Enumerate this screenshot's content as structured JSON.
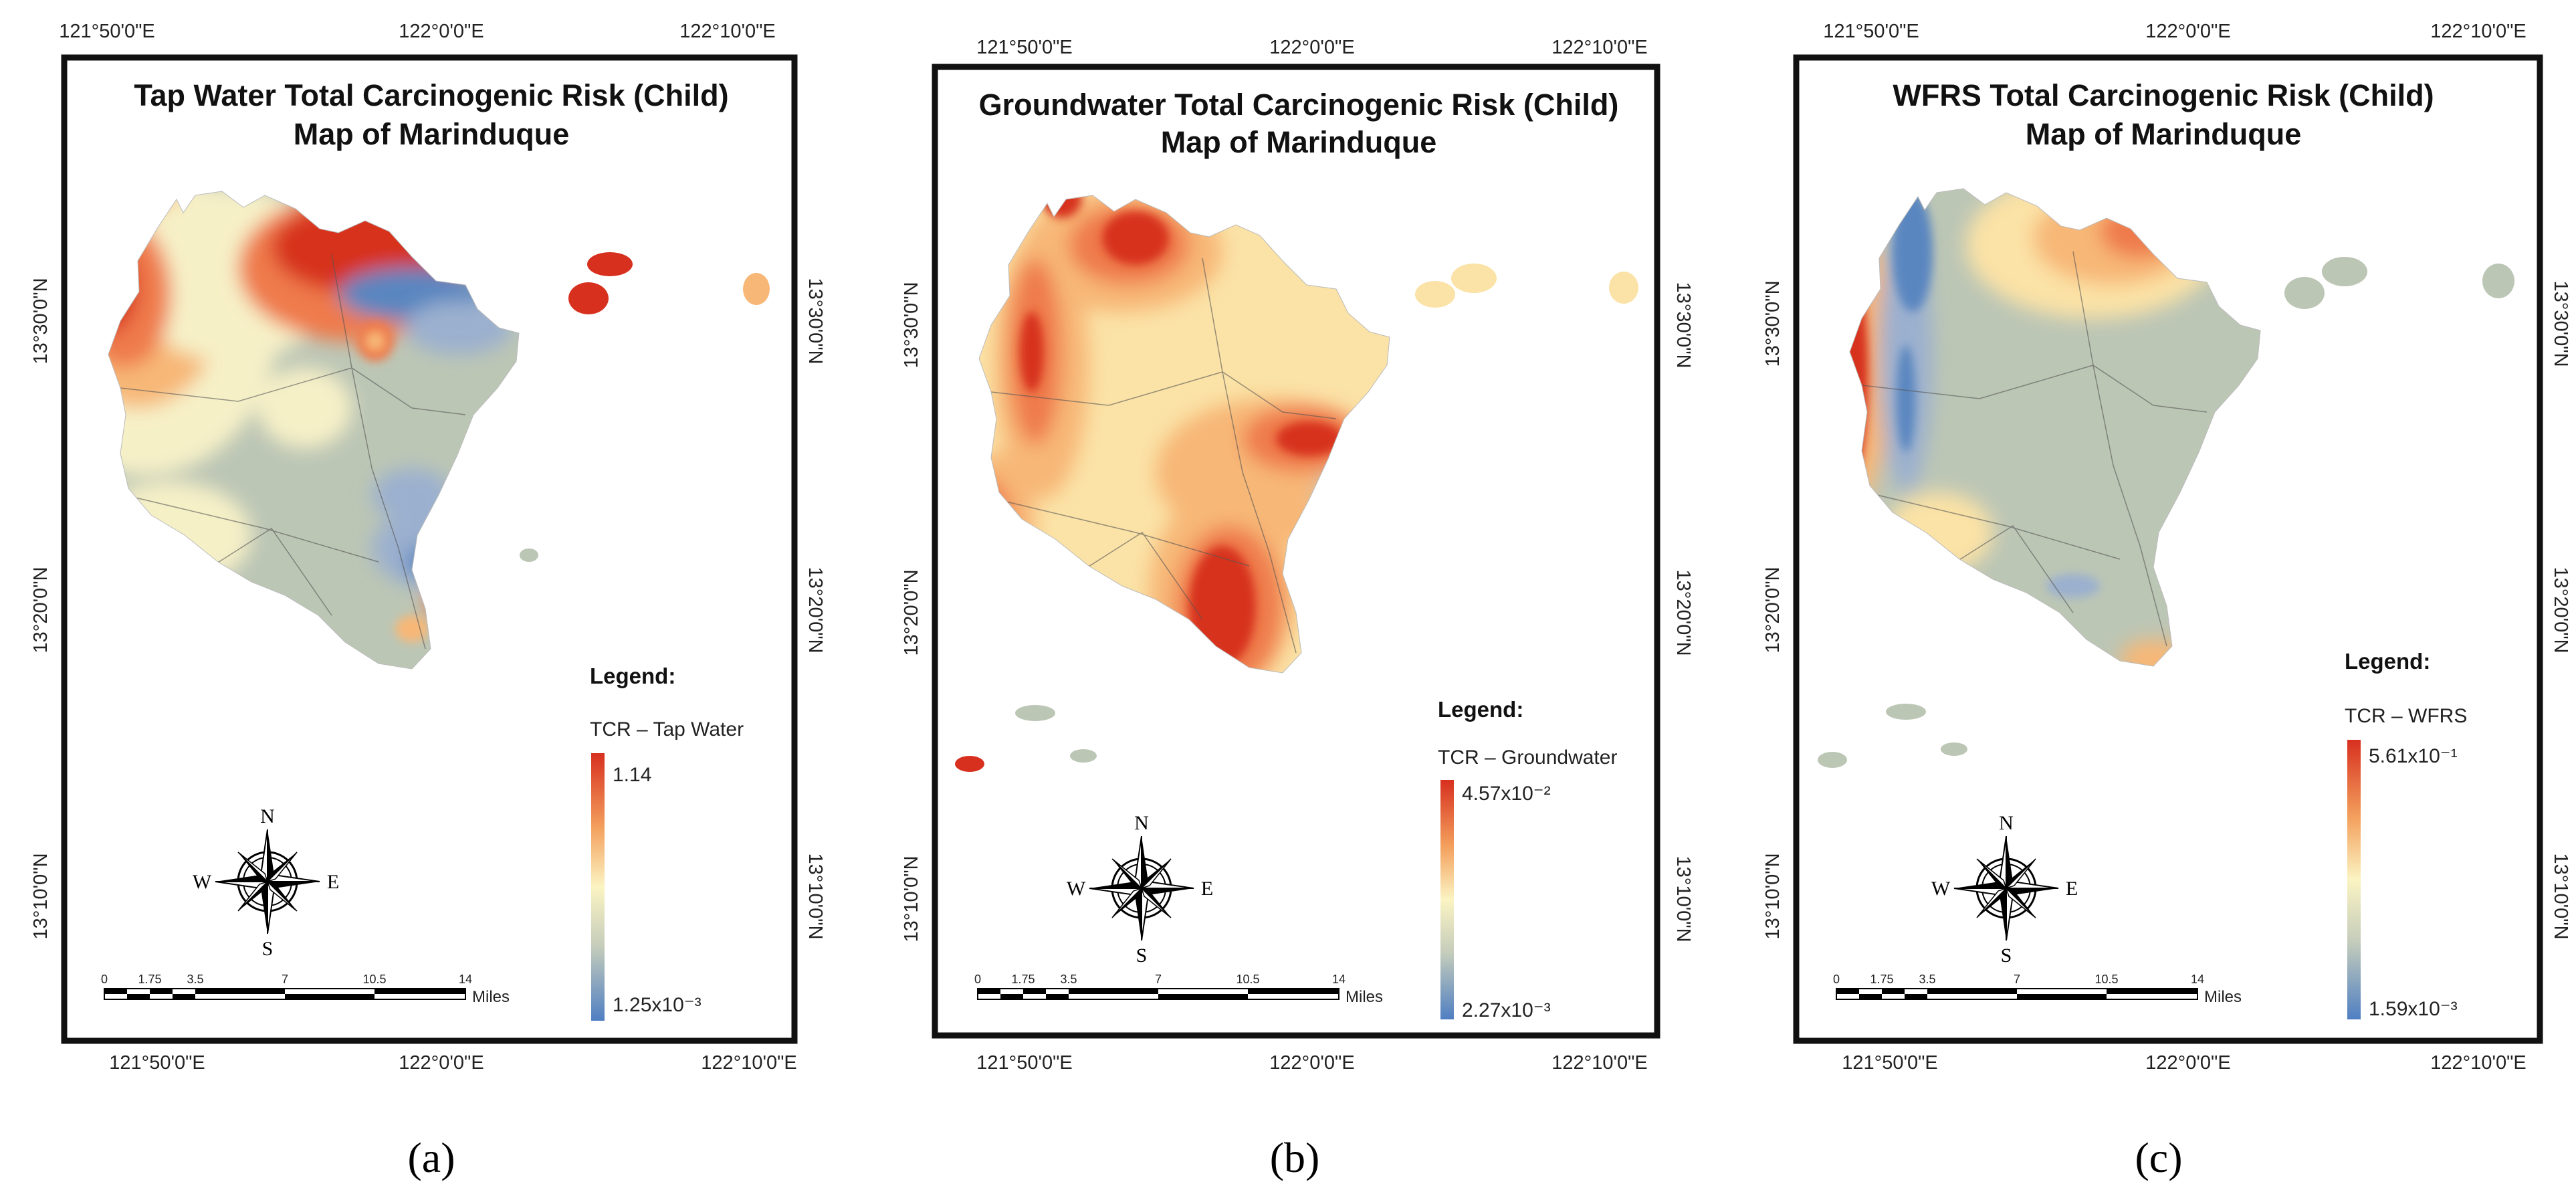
{
  "colors": {
    "high": "#d7301f",
    "orange": "#ef7a4b",
    "light_orange": "#f7b777",
    "yellow": "#fbe2a6",
    "pale_yellow": "#f6f0c7",
    "grey_green": "#bcc6b5",
    "blue": "#5a86c0",
    "light_blue": "#9bb0cf",
    "frame": "#111111"
  },
  "panels": [
    {
      "id": "a",
      "letter": "(a)",
      "title_line1": "Tap Water Total Carcinogenic Risk (Child)",
      "title_line2": "Map of Marinduque",
      "legend_title": "Legend:",
      "legend_subtitle": "TCR – Tap Water",
      "legend_max": "1.14",
      "legend_min": "1.25x10⁻³",
      "top_lon": [
        "121°50'0\"E",
        "122°0'0\"E",
        "122°10'0\"E"
      ],
      "bottom_lon": [
        "121°50'0\"E",
        "122°0'0\"E",
        "122°10'0\"E"
      ],
      "left_lat": [
        "13°30'0\"N",
        "13°20'0\"N",
        "13°10'0\"N"
      ],
      "right_lat": [
        "13°30'0\"N",
        "13°20'0\"N",
        "13°10'0\"N"
      ]
    },
    {
      "id": "b",
      "letter": "(b)",
      "title_line1": "Groundwater Total Carcinogenic Risk (Child)",
      "title_line2": "Map of Marinduque",
      "legend_title": "Legend:",
      "legend_subtitle": "TCR – Groundwater",
      "legend_max": "4.57x10⁻²",
      "legend_min": "2.27x10⁻³",
      "top_lon": [
        "121°50'0\"E",
        "122°0'0\"E",
        "122°10'0\"E"
      ],
      "bottom_lon": [
        "121°50'0\"E",
        "122°0'0\"E",
        "122°10'0\"E"
      ],
      "left_lat": [
        "13°30'0\"N",
        "13°20'0\"N",
        "13°10'0\"N"
      ],
      "right_lat": [
        "13°30'0\"N",
        "13°20'0\"N",
        "13°10'0\"N"
      ]
    },
    {
      "id": "c",
      "letter": "(c)",
      "title_line1": "WFRS Total Carcinogenic Risk (Child)",
      "title_line2": "Map of Marinduque",
      "legend_title": "Legend:",
      "legend_subtitle": "TCR – WFRS",
      "legend_max": "5.61x10⁻¹",
      "legend_min": "1.59x10⁻³",
      "top_lon": [
        "121°50'0\"E",
        "122°0'0\"E",
        "122°10'0\"E"
      ],
      "bottom_lon": [
        "121°50'0\"E",
        "122°0'0\"E",
        "122°10'0\"E"
      ],
      "left_lat": [
        "13°30'0\"N",
        "13°20'0\"N",
        "13°10'0\"N"
      ],
      "right_lat": [
        "13°30'0\"N",
        "13°20'0\"N",
        "13°10'0\"N"
      ]
    }
  ],
  "scale_bar": {
    "ticks": [
      "0",
      "1.75",
      "3.5",
      "7",
      "10.5",
      "14"
    ],
    "unit": "Miles"
  },
  "compass": {
    "n": "N",
    "s": "S",
    "e": "E",
    "w": "W"
  }
}
